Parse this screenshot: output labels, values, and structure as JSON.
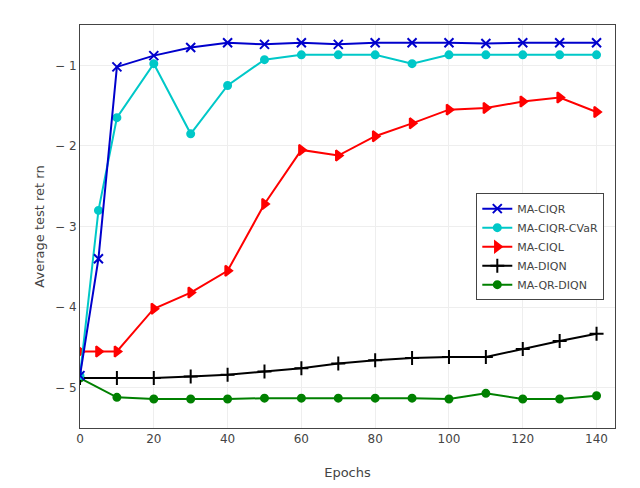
{
  "chart_data": {
    "type": "line",
    "xlabel": "Epochs",
    "ylabel": "Average test ret rn",
    "xlim": [
      0,
      145
    ],
    "ylim": [
      -5.5,
      -0.5
    ],
    "xticks": [
      0,
      20,
      40,
      60,
      80,
      100,
      120,
      140
    ],
    "yticks": [
      {
        "value": -5,
        "label": "− 5"
      },
      {
        "value": -4,
        "label": "− 4"
      },
      {
        "value": -3,
        "label": "− 3"
      },
      {
        "value": -2,
        "label": "− 2"
      },
      {
        "value": -1,
        "label": "− 1"
      }
    ],
    "grid": true,
    "legend": "right",
    "series": [
      {
        "name": "MA-CIQR",
        "color": "#0000cc",
        "marker": "x",
        "x": [
          0,
          5,
          10,
          20,
          30,
          40,
          50,
          60,
          70,
          80,
          90,
          100,
          110,
          120,
          130,
          140
        ],
        "values": [
          -4.85,
          -3.4,
          -1.02,
          -0.88,
          -0.78,
          -0.72,
          -0.74,
          -0.72,
          -0.74,
          -0.72,
          -0.72,
          -0.72,
          -0.73,
          -0.72,
          -0.72,
          -0.72
        ]
      },
      {
        "name": "MA-CIQR-CVaR",
        "color": "#00c8c8",
        "marker": "circle",
        "x": [
          0,
          5,
          10,
          20,
          30,
          40,
          50,
          60,
          70,
          80,
          90,
          100,
          110,
          120,
          130,
          140
        ],
        "values": [
          -4.85,
          -2.8,
          -1.65,
          -0.98,
          -1.85,
          -1.25,
          -0.93,
          -0.87,
          -0.87,
          -0.87,
          -0.98,
          -0.87,
          -0.87,
          -0.87,
          -0.87,
          -0.87
        ]
      },
      {
        "name": "MA-CIQL",
        "color": "#ff0000",
        "marker": "triangle-right",
        "x": [
          0,
          5,
          10,
          20,
          30,
          40,
          50,
          60,
          70,
          80,
          90,
          100,
          110,
          120,
          130,
          140
        ],
        "values": [
          -4.55,
          -4.55,
          -4.55,
          -4.02,
          -3.82,
          -3.55,
          -2.72,
          -2.05,
          -2.12,
          -1.88,
          -1.72,
          -1.55,
          -1.53,
          -1.45,
          -1.4,
          -1.58
        ]
      },
      {
        "name": "MA-DIQN",
        "color": "#000000",
        "marker": "plus",
        "x": [
          0,
          10,
          20,
          30,
          40,
          50,
          60,
          70,
          80,
          90,
          100,
          110,
          120,
          130,
          140
        ],
        "values": [
          -4.88,
          -4.88,
          -4.88,
          -4.86,
          -4.84,
          -4.8,
          -4.76,
          -4.7,
          -4.66,
          -4.63,
          -4.62,
          -4.62,
          -4.52,
          -4.42,
          -4.33
        ]
      },
      {
        "name": "MA-QR-DIQN",
        "color": "#008000",
        "marker": "circle",
        "x": [
          0,
          10,
          20,
          30,
          40,
          50,
          60,
          70,
          80,
          90,
          100,
          110,
          120,
          130,
          140
        ],
        "values": [
          -4.88,
          -5.12,
          -5.14,
          -5.14,
          -5.14,
          -5.13,
          -5.13,
          -5.13,
          -5.13,
          -5.13,
          -5.14,
          -5.07,
          -5.14,
          -5.14,
          -5.1
        ]
      }
    ]
  }
}
